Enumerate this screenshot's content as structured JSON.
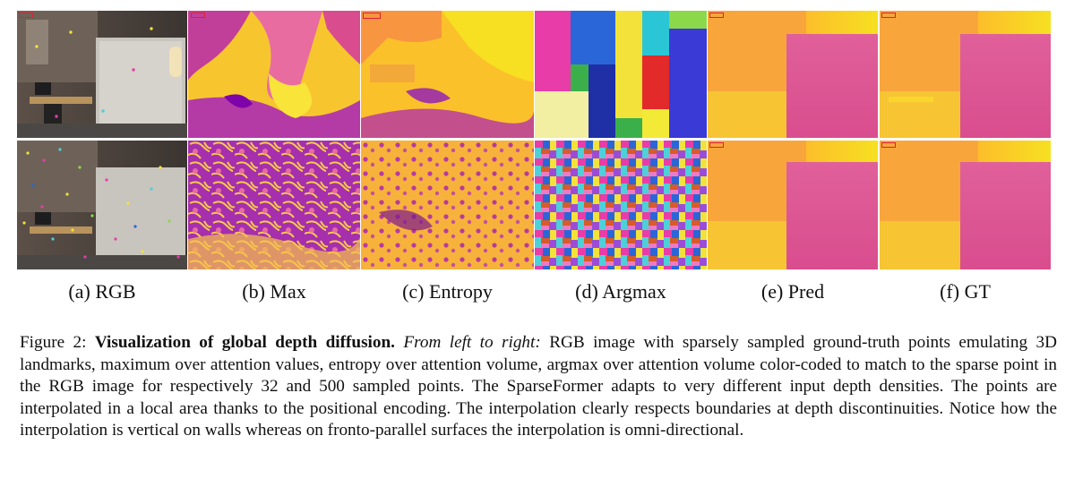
{
  "figure": {
    "subfigure_labels": [
      "(a) RGB",
      "(b) Max",
      "(c) Entropy",
      "(d) Argmax",
      "(e) Pred",
      "(f) GT"
    ],
    "caption": {
      "label": "Figure 2:",
      "title": "Visualization of global depth diffusion.",
      "emphasis": "From left to right:",
      "body": "RGB image with sparsely sampled ground-truth points emulating 3D landmarks, maximum over attention values, entropy over attention volume, argmax over attention volume color-coded to match to the sparse point in the RGB image for respectively 32 and 500 sampled points. The SparseFormer adapts to very different input depth densities. The points are interpolated in a local area thanks to the positional encoding. The interpolation clearly respects boundaries at depth discontinuities. Notice how the interpolation is vertical on walls whereas on fronto-parallel surfaces the interpolation is omni-directional."
    },
    "rows": [
      "32 sampled points",
      "500 sampled points"
    ],
    "colormap_colors": [
      "#0d0887",
      "#7e03a8",
      "#cc4778",
      "#f89540",
      "#f0f921"
    ]
  }
}
